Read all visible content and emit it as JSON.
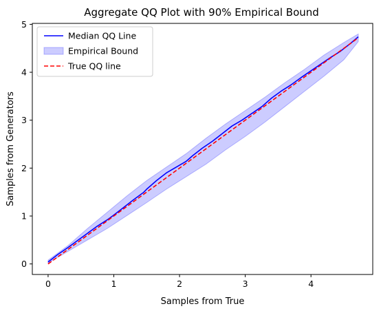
{
  "chart_data": {
    "type": "line",
    "title": "Aggregate QQ Plot with  90% Empirical Bound",
    "xlabel": "Samples from True",
    "ylabel": "Samples from Generators",
    "xlim": [
      -0.24,
      4.94
    ],
    "ylim": [
      -0.22,
      5.02
    ],
    "xticks": [
      0,
      1,
      2,
      3,
      4
    ],
    "yticks": [
      0,
      1,
      2,
      3,
      4,
      5
    ],
    "grid": false,
    "legend_position": "top-left",
    "series": [
      {
        "name": "Median QQ Line",
        "style": "solid",
        "color": "#0000ff",
        "x": [
          0.0,
          0.15,
          0.3,
          0.45,
          0.6,
          0.75,
          0.9,
          1.0,
          1.15,
          1.3,
          1.45,
          1.5,
          1.65,
          1.8,
          1.95,
          2.1,
          2.2,
          2.35,
          2.5,
          2.65,
          2.8,
          2.95,
          3.1,
          3.25,
          3.4,
          3.55,
          3.7,
          3.85,
          4.0,
          4.15,
          4.3,
          4.45,
          4.6,
          4.72
        ],
        "y": [
          0.04,
          0.2,
          0.34,
          0.49,
          0.64,
          0.79,
          0.92,
          1.02,
          1.18,
          1.34,
          1.49,
          1.56,
          1.74,
          1.9,
          2.02,
          2.14,
          2.26,
          2.42,
          2.56,
          2.72,
          2.88,
          3.0,
          3.14,
          3.28,
          3.46,
          3.61,
          3.74,
          3.89,
          4.03,
          4.17,
          4.31,
          4.44,
          4.6,
          4.74
        ]
      },
      {
        "name": "Empirical Bound",
        "style": "band",
        "color": "#0000ff",
        "x": [
          0.0,
          0.3,
          0.6,
          0.9,
          1.2,
          1.5,
          1.8,
          2.1,
          2.4,
          2.7,
          3.0,
          3.3,
          3.6,
          3.9,
          4.2,
          4.5,
          4.72
        ],
        "lower": [
          0.02,
          0.26,
          0.5,
          0.74,
          1.01,
          1.28,
          1.56,
          1.82,
          2.08,
          2.38,
          2.66,
          2.96,
          3.28,
          3.6,
          3.92,
          4.26,
          4.64
        ],
        "upper": [
          0.08,
          0.38,
          0.74,
          1.08,
          1.42,
          1.74,
          2.02,
          2.3,
          2.62,
          2.92,
          3.2,
          3.48,
          3.78,
          4.06,
          4.36,
          4.62,
          4.8
        ]
      },
      {
        "name": "True QQ line",
        "style": "dashed",
        "color": "#ff0000",
        "x": [
          0.0,
          4.72
        ],
        "y": [
          0.0,
          4.72
        ]
      }
    ]
  }
}
